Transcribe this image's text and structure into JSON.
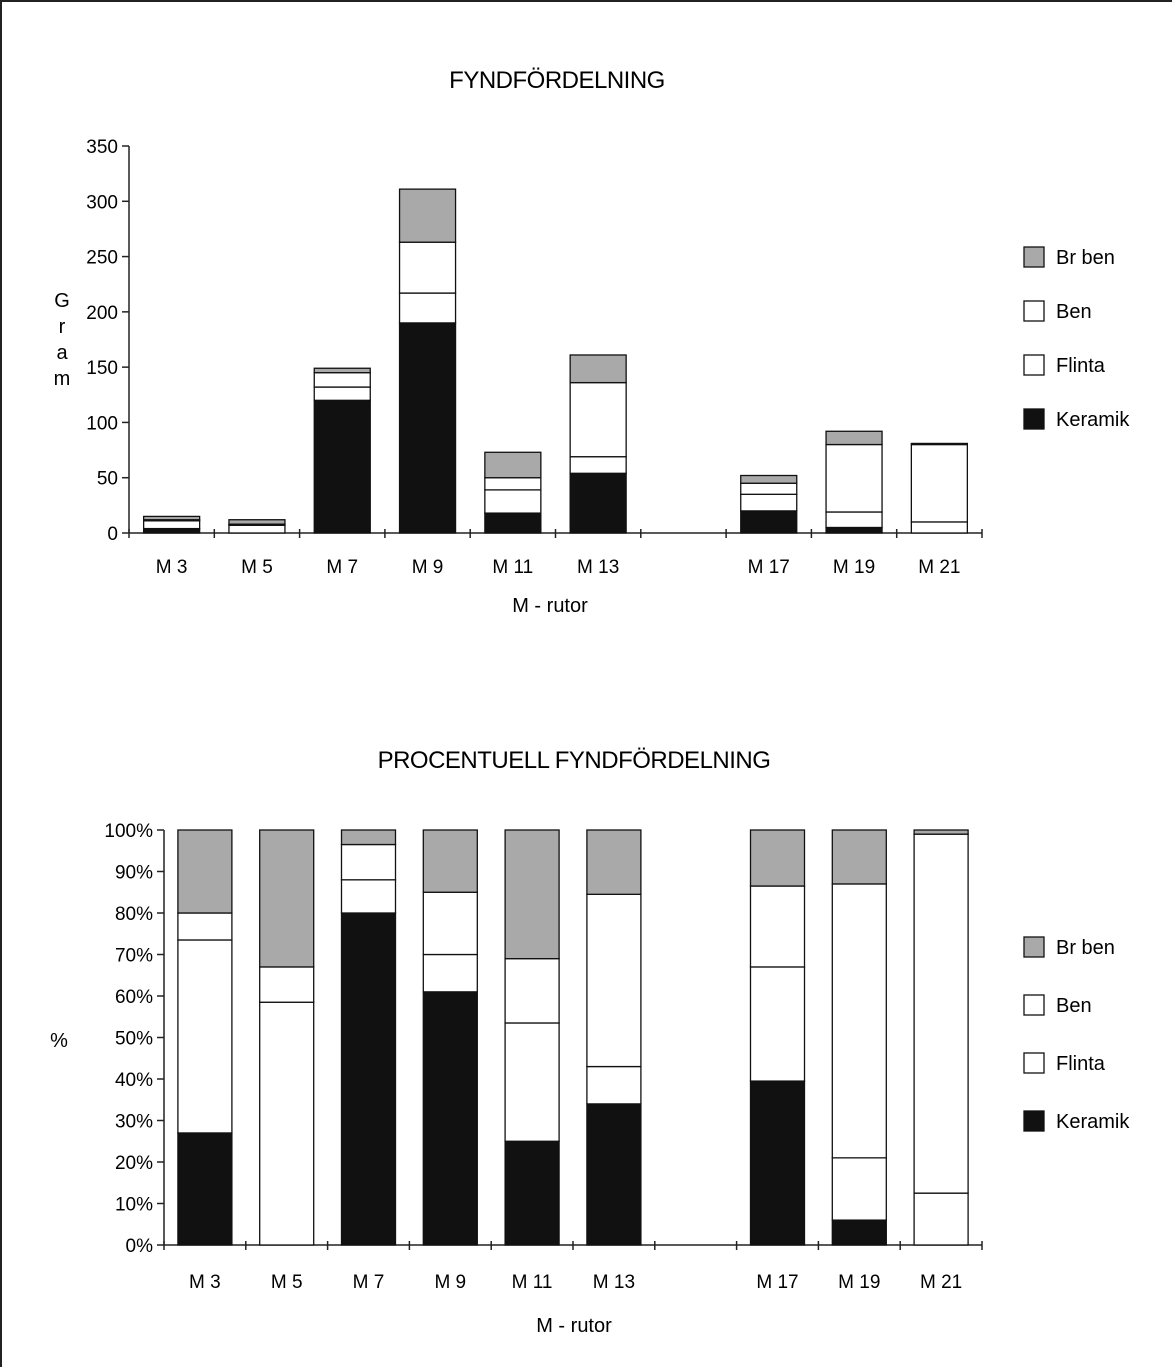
{
  "chart_data": [
    {
      "type": "bar",
      "stacked": true,
      "title": "FYNDFÖRDELNING",
      "xlabel": "M - rutor",
      "ylabel": "G r a m",
      "ylim": [
        0,
        350
      ],
      "yticks": [
        0,
        50,
        100,
        150,
        200,
        250,
        300,
        350
      ],
      "slots": [
        "M 3",
        "M 5",
        "M 7",
        "M 9",
        "M 11",
        "M 13",
        "",
        "M 17",
        "M 19",
        "M 21"
      ],
      "categories": [
        "M 3",
        "M 5",
        "M 7",
        "M 9",
        "M 11",
        "M 13",
        "M 17",
        "M 19",
        "M 21"
      ],
      "series": [
        {
          "name": "Keramik",
          "values": [
            4,
            0,
            120,
            190,
            18,
            54,
            20,
            5,
            0
          ]
        },
        {
          "name": "Flinta",
          "values": [
            7,
            7,
            12,
            27,
            21,
            15,
            15,
            14,
            10
          ]
        },
        {
          "name": "Ben",
          "values": [
            1,
            1,
            13,
            46,
            11,
            67,
            10,
            61,
            70
          ]
        },
        {
          "name": "Br ben",
          "values": [
            3,
            4,
            4,
            48,
            23,
            25,
            7,
            12,
            1
          ]
        }
      ],
      "legend": [
        "Br ben",
        "Ben",
        "Flinta",
        "Keramik"
      ],
      "legend_position": "right"
    },
    {
      "type": "bar",
      "stacked": true,
      "percent": true,
      "title": "PROCENTUELL FYNDFÖRDELNING",
      "xlabel": "M - rutor",
      "ylabel": "%",
      "ylim": [
        0,
        100
      ],
      "yticks": [
        "0%",
        "10%",
        "20%",
        "30%",
        "40%",
        "50%",
        "60%",
        "70%",
        "80%",
        "90%",
        "100%"
      ],
      "slots": [
        "M 3",
        "M 5",
        "M 7",
        "M 9",
        "M 11",
        "M 13",
        "",
        "M 17",
        "M 19",
        "M 21"
      ],
      "categories": [
        "M 3",
        "M 5",
        "M 7",
        "M 9",
        "M 11",
        "M 13",
        "M 17",
        "M 19",
        "M 21"
      ],
      "series": [
        {
          "name": "Keramik",
          "values": [
            27,
            0,
            80,
            61,
            25,
            34,
            39.5,
            6,
            0
          ]
        },
        {
          "name": "Flinta",
          "values": [
            46.5,
            58.5,
            8,
            9,
            28.5,
            9,
            27.5,
            15,
            12.5
          ]
        },
        {
          "name": "Ben",
          "values": [
            6.5,
            8.5,
            8.5,
            15,
            15.5,
            41.5,
            19.5,
            66,
            86.5
          ]
        },
        {
          "name": "Br ben",
          "values": [
            20,
            33,
            3.5,
            15,
            31,
            15.5,
            13.5,
            13,
            1
          ]
        }
      ],
      "legend": [
        "Br ben",
        "Ben",
        "Flinta",
        "Keramik"
      ],
      "legend_position": "right"
    }
  ],
  "colors": {
    "Keramik": "#111111",
    "Flinta": "#ffffff",
    "Ben": "#ffffff",
    "Br ben": "#a9a9a9",
    "axis": "#222222"
  }
}
